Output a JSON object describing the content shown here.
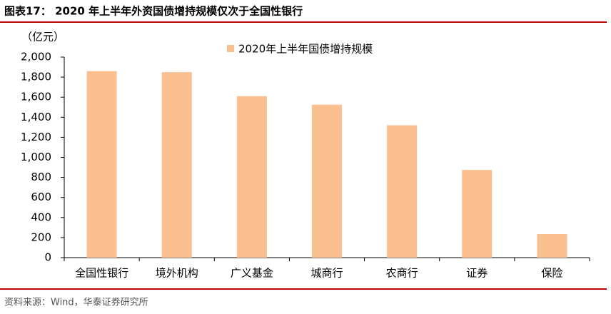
{
  "chart_data": {
    "type": "bar",
    "title": "图表17： 2020 年上半年外资国债增持规模仅次于全国性银行",
    "y_unit": "（亿元）",
    "categories": [
      "全国性银行",
      "境外机构",
      "广义基金",
      "城商行",
      "农商行",
      "证券",
      "保险"
    ],
    "series": [
      {
        "name": "2020年上半年国债增持规模",
        "color": "#fac090",
        "values": [
          1860,
          1850,
          1610,
          1525,
          1320,
          875,
          235
        ]
      }
    ],
    "ylim": [
      0,
      2000
    ],
    "yticks": [
      0,
      200,
      400,
      600,
      800,
      {
        "value": 1000,
        "label": "1,000"
      },
      {
        "value": 1200,
        "label": "1,200"
      },
      {
        "value": 1400,
        "label": "1,400"
      },
      {
        "value": 1600,
        "label": "1,600"
      },
      {
        "value": 1800,
        "label": "1,800"
      },
      {
        "value": 2000,
        "label": "2,000"
      }
    ],
    "grid": false,
    "legend": "top",
    "source": "资料来源：Wind，华泰证券研究所"
  }
}
